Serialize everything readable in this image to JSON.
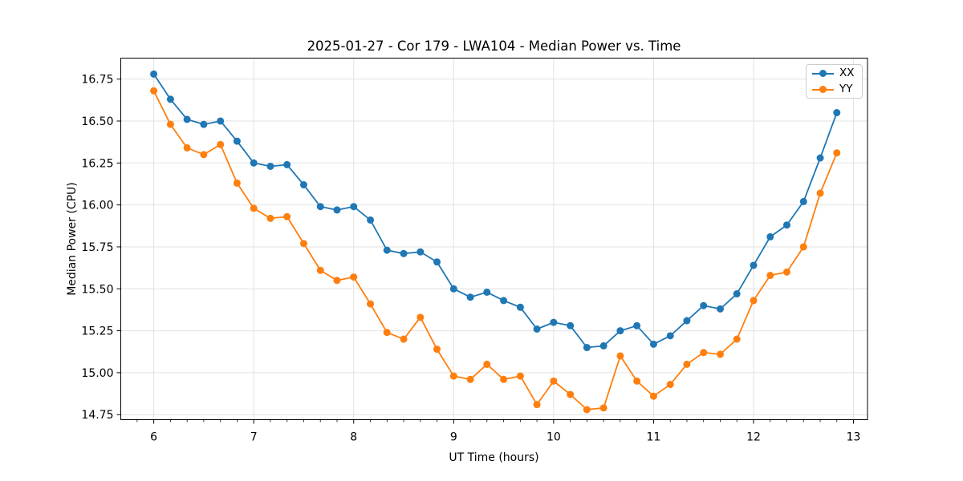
{
  "figure": {
    "background": "#ffffff",
    "axes_bg": "#ffffff",
    "grid_color": "#e2e2e2",
    "spine_color": "#000000",
    "tick_label_color": "#000000"
  },
  "chart_data": {
    "type": "line",
    "title": "2025-01-27 - Cor 179 - LWA104 - Median Power vs. Time",
    "xlabel": "UT Time (hours)",
    "ylabel": "Median Power (CPU)",
    "xlim": [
      5.67,
      13.14
    ],
    "ylim": [
      14.72,
      16.875
    ],
    "xticks": [
      6,
      7,
      8,
      9,
      10,
      11,
      12,
      13
    ],
    "xtick_labels": [
      "6",
      "7",
      "8",
      "9",
      "10",
      "11",
      "12",
      "13"
    ],
    "x_minor_tick_step": 0.16667,
    "yticks": [
      14.75,
      15.0,
      15.25,
      15.5,
      15.75,
      16.0,
      16.25,
      16.5,
      16.75
    ],
    "ytick_labels": [
      "14.75",
      "15.00",
      "15.25",
      "15.50",
      "15.75",
      "16.00",
      "16.25",
      "16.50",
      "16.75"
    ],
    "grid": true,
    "legend_position": "upper right",
    "x": [
      6.0,
      6.167,
      6.333,
      6.5,
      6.667,
      6.833,
      7.0,
      7.167,
      7.333,
      7.5,
      7.667,
      7.833,
      8.0,
      8.167,
      8.333,
      8.5,
      8.667,
      8.833,
      9.0,
      9.167,
      9.333,
      9.5,
      9.667,
      9.833,
      10.0,
      10.167,
      10.333,
      10.5,
      10.667,
      10.833,
      11.0,
      11.167,
      11.333,
      11.5,
      11.667,
      11.833,
      12.0,
      12.167,
      12.333,
      12.5,
      12.667,
      12.833
    ],
    "series": [
      {
        "name": "XX",
        "color": "#1f77b4",
        "values": [
          16.78,
          16.63,
          16.51,
          16.48,
          16.5,
          16.38,
          16.25,
          16.23,
          16.24,
          16.12,
          15.99,
          15.97,
          15.99,
          15.91,
          15.73,
          15.71,
          15.72,
          15.66,
          15.5,
          15.45,
          15.48,
          15.43,
          15.39,
          15.26,
          15.3,
          15.28,
          15.15,
          15.16,
          15.25,
          15.28,
          15.17,
          15.22,
          15.31,
          15.4,
          15.38,
          15.47,
          15.64,
          15.81,
          15.88,
          16.02,
          16.28,
          16.55
        ]
      },
      {
        "name": "YY",
        "color": "#ff7f0e",
        "values": [
          16.68,
          16.48,
          16.34,
          16.3,
          16.36,
          16.13,
          15.98,
          15.92,
          15.93,
          15.77,
          15.61,
          15.55,
          15.57,
          15.41,
          15.24,
          15.2,
          15.33,
          15.14,
          14.98,
          14.96,
          15.05,
          14.96,
          14.98,
          14.81,
          14.95,
          14.87,
          14.78,
          14.79,
          15.1,
          14.95,
          14.86,
          14.93,
          15.05,
          15.12,
          15.11,
          15.2,
          15.43,
          15.58,
          15.6,
          15.75,
          16.07,
          16.31
        ]
      }
    ]
  }
}
